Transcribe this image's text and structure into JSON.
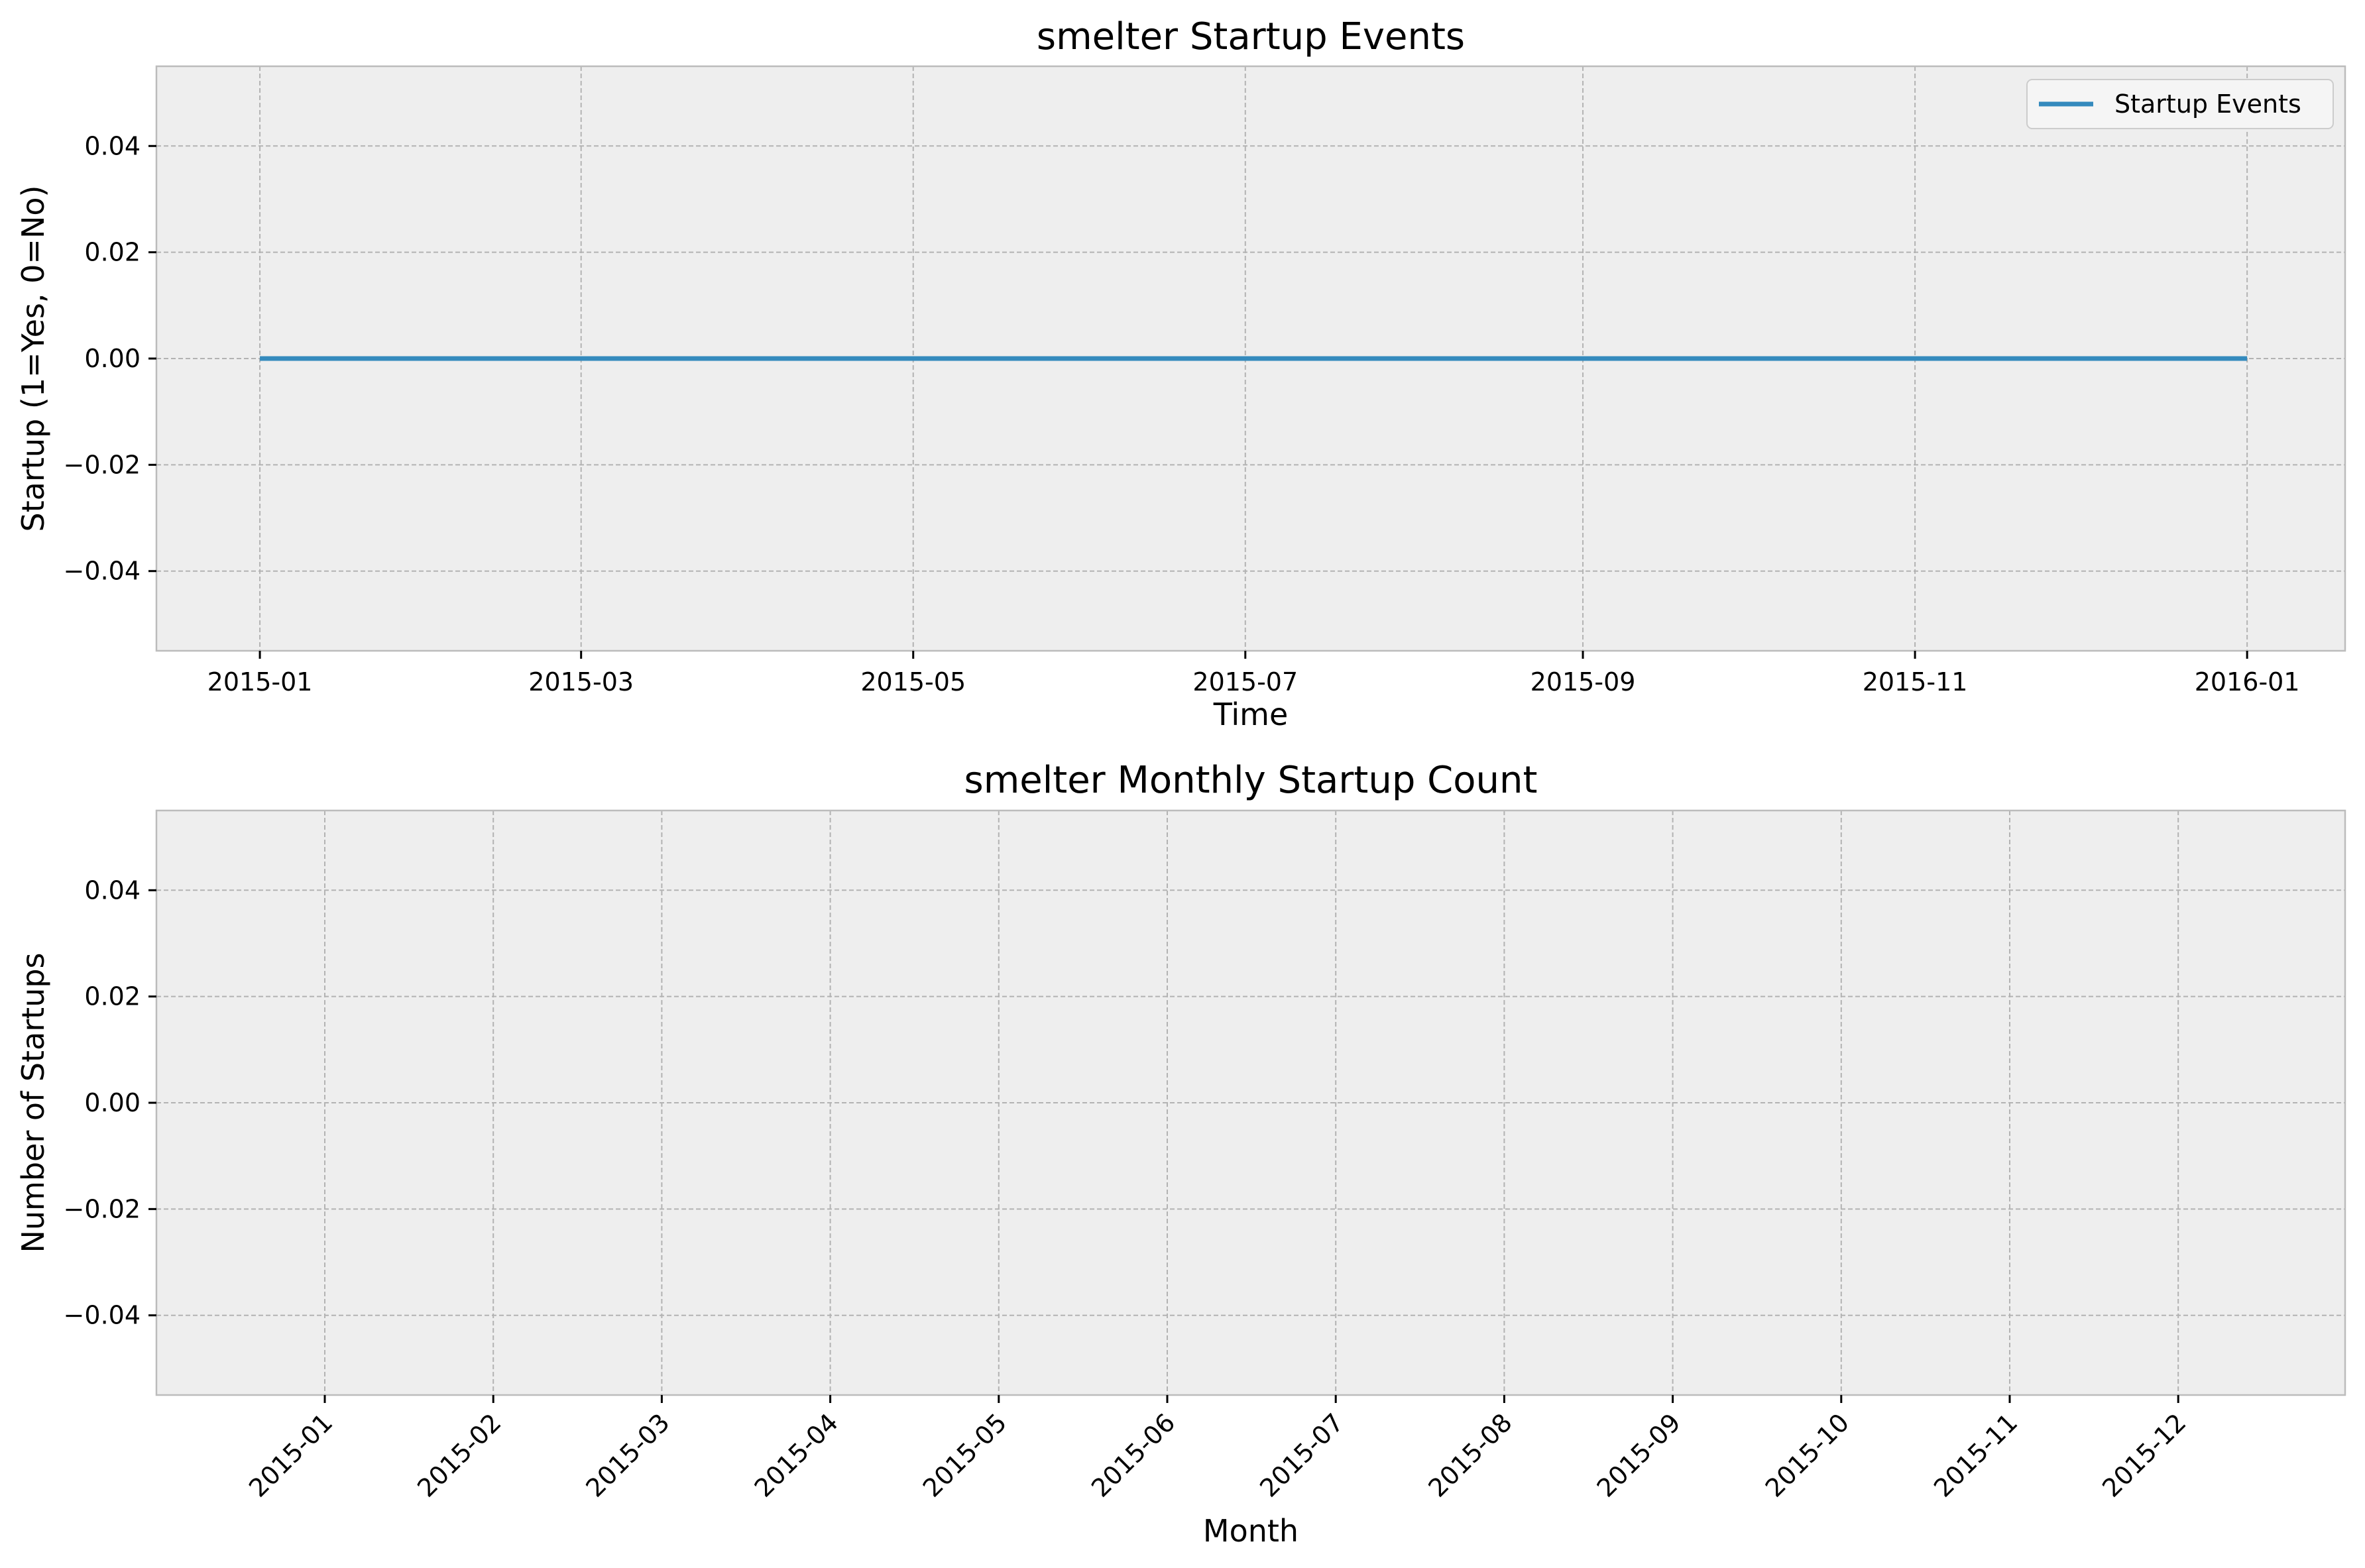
{
  "colors": {
    "axes_background": "#eeeeee",
    "grid": "#b3b3b3",
    "spine": "#bcbcbc",
    "series_line": "#348abd",
    "legend_background": "#f5f5f5"
  },
  "chart_data": [
    {
      "type": "line",
      "title": "smelter Startup Events",
      "xlabel": "Time",
      "ylabel": "Startup (1=Yes, 0=No)",
      "x_axis_type": "date",
      "xlim": [
        "2014-12-13",
        "2016-01-19"
      ],
      "ylim": [
        -0.055,
        0.055
      ],
      "x_ticks": [
        "2015-01",
        "2015-03",
        "2015-05",
        "2015-07",
        "2015-09",
        "2015-11",
        "2016-01"
      ],
      "x_tick_dates": [
        "2015-01-01",
        "2015-03-01",
        "2015-05-01",
        "2015-07-01",
        "2015-09-01",
        "2015-11-01",
        "2016-01-01"
      ],
      "y_ticks": [
        0.04,
        0.02,
        0.0,
        -0.02,
        -0.04
      ],
      "y_tick_labels": [
        "0.04",
        "0.02",
        "0.00",
        "−0.02",
        "−0.04"
      ],
      "grid": true,
      "legend": {
        "placement": "top-right",
        "entries": [
          "Startup Events"
        ]
      },
      "series": [
        {
          "name": "Startup Events",
          "x": [
            "2015-01-01",
            "2016-01-01"
          ],
          "values": [
            0,
            0
          ]
        }
      ]
    },
    {
      "type": "bar",
      "title": "smelter Monthly Startup Count",
      "xlabel": "Month",
      "ylabel": "Number of Startups",
      "ylim": [
        -0.055,
        0.055
      ],
      "categories": [
        "2015-01",
        "2015-02",
        "2015-03",
        "2015-04",
        "2015-05",
        "2015-06",
        "2015-07",
        "2015-08",
        "2015-09",
        "2015-10",
        "2015-11",
        "2015-12"
      ],
      "values": [
        0,
        0,
        0,
        0,
        0,
        0,
        0,
        0,
        0,
        0,
        0,
        0
      ],
      "y_ticks": [
        0.04,
        0.02,
        0.0,
        -0.02,
        -0.04
      ],
      "y_tick_labels": [
        "0.04",
        "0.02",
        "0.00",
        "−0.02",
        "−0.04"
      ],
      "x_tick_rotation": -45,
      "grid": true
    }
  ]
}
